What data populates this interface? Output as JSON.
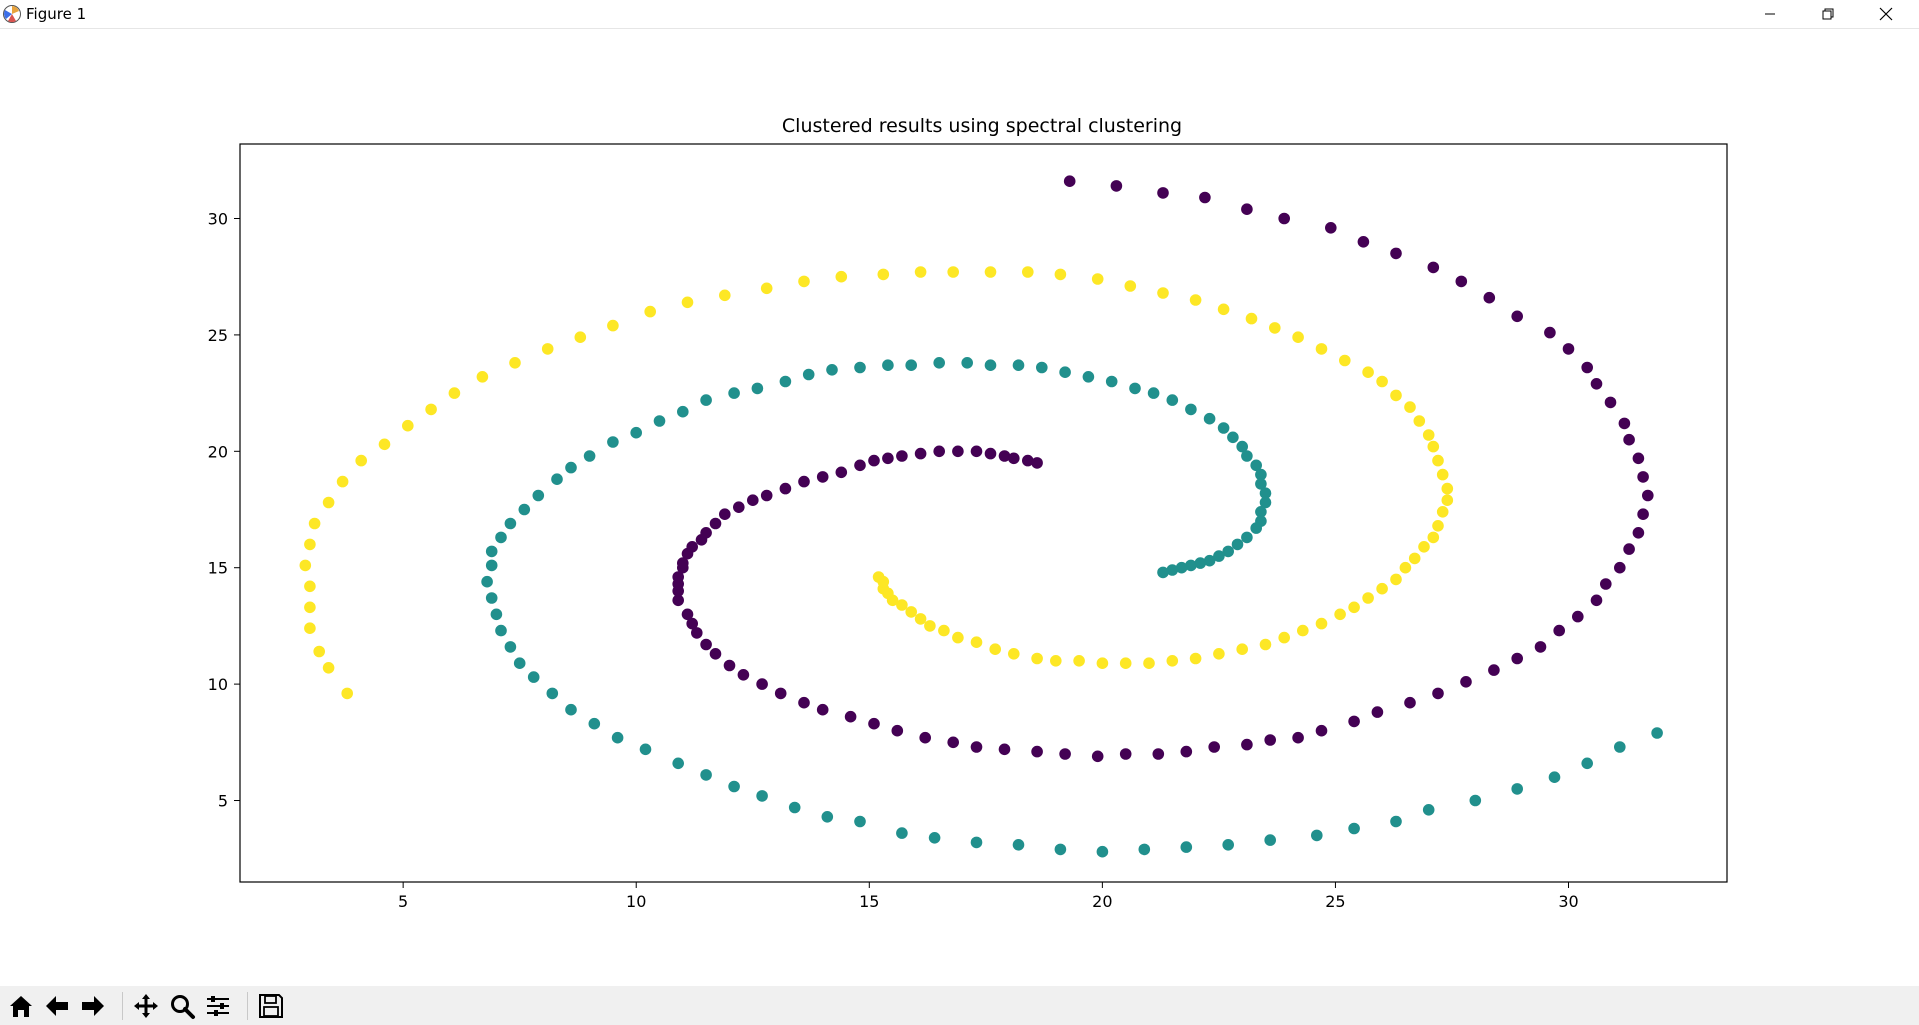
{
  "window": {
    "title": "Figure 1"
  },
  "toolbar": {
    "buttons": [
      "home-icon",
      "back-icon",
      "forward-icon",
      "pan-icon",
      "zoom-icon",
      "configure-icon",
      "save-icon"
    ]
  },
  "chart_data": {
    "type": "scatter",
    "title": "Clustered results using spectral clustering",
    "xlabel": "",
    "ylabel": "",
    "xlim": [
      1.5,
      33.4
    ],
    "ylim": [
      1.5,
      33.2
    ],
    "xticks": [
      5,
      10,
      15,
      20,
      25,
      30
    ],
    "yticks": [
      5,
      10,
      15,
      20,
      25,
      30
    ],
    "grid": false,
    "legend": "none",
    "series": [
      {
        "color": "#440154",
        "points": [
          [
            19.3,
            31.6
          ],
          [
            20.3,
            31.4
          ],
          [
            21.3,
            31.1
          ],
          [
            22.2,
            30.9
          ],
          [
            23.1,
            30.4
          ],
          [
            23.9,
            30.0
          ],
          [
            24.9,
            29.6
          ],
          [
            25.6,
            29.0
          ],
          [
            26.3,
            28.5
          ],
          [
            27.1,
            27.9
          ],
          [
            27.7,
            27.3
          ],
          [
            28.3,
            26.6
          ],
          [
            28.9,
            25.8
          ],
          [
            29.6,
            25.1
          ],
          [
            30.0,
            24.4
          ],
          [
            30.4,
            23.6
          ],
          [
            30.6,
            22.9
          ],
          [
            30.9,
            22.1
          ],
          [
            31.2,
            21.2
          ],
          [
            31.3,
            20.5
          ],
          [
            31.5,
            19.7
          ],
          [
            31.6,
            18.9
          ],
          [
            31.7,
            18.1
          ],
          [
            31.6,
            17.3
          ],
          [
            31.5,
            16.5
          ],
          [
            31.3,
            15.8
          ],
          [
            31.1,
            15.0
          ],
          [
            30.8,
            14.3
          ],
          [
            30.6,
            13.6
          ],
          [
            30.2,
            12.9
          ],
          [
            29.8,
            12.3
          ],
          [
            29.4,
            11.6
          ],
          [
            28.9,
            11.1
          ],
          [
            28.4,
            10.6
          ],
          [
            27.8,
            10.1
          ],
          [
            27.2,
            9.6
          ],
          [
            26.6,
            9.2
          ],
          [
            25.9,
            8.8
          ],
          [
            25.4,
            8.4
          ],
          [
            24.7,
            8.0
          ],
          [
            24.2,
            7.7
          ],
          [
            23.6,
            7.6
          ],
          [
            23.1,
            7.4
          ],
          [
            22.4,
            7.3
          ],
          [
            21.8,
            7.1
          ],
          [
            21.2,
            7.0
          ],
          [
            20.5,
            7.0
          ],
          [
            19.9,
            6.9
          ],
          [
            19.2,
            7.0
          ],
          [
            18.6,
            7.1
          ],
          [
            17.9,
            7.2
          ],
          [
            17.3,
            7.3
          ],
          [
            16.8,
            7.5
          ],
          [
            16.2,
            7.7
          ],
          [
            15.6,
            8.0
          ],
          [
            15.1,
            8.3
          ],
          [
            14.6,
            8.6
          ],
          [
            14.0,
            8.9
          ],
          [
            13.6,
            9.2
          ],
          [
            13.1,
            9.6
          ],
          [
            12.7,
            10.0
          ],
          [
            12.3,
            10.4
          ],
          [
            12.0,
            10.8
          ],
          [
            11.7,
            11.3
          ],
          [
            11.5,
            11.7
          ],
          [
            11.3,
            12.2
          ],
          [
            11.2,
            12.6
          ],
          [
            11.1,
            13.0
          ],
          [
            10.9,
            13.6
          ],
          [
            10.9,
            14.0
          ],
          [
            10.9,
            14.3
          ],
          [
            10.9,
            14.6
          ],
          [
            11.0,
            15.0
          ],
          [
            11.0,
            15.2
          ],
          [
            11.1,
            15.6
          ],
          [
            11.2,
            15.9
          ],
          [
            11.4,
            16.2
          ],
          [
            11.5,
            16.5
          ],
          [
            11.7,
            16.9
          ],
          [
            11.9,
            17.3
          ],
          [
            12.2,
            17.6
          ],
          [
            12.5,
            17.9
          ],
          [
            12.8,
            18.1
          ],
          [
            13.2,
            18.4
          ],
          [
            13.6,
            18.7
          ],
          [
            14.0,
            18.9
          ],
          [
            14.4,
            19.1
          ],
          [
            14.8,
            19.4
          ],
          [
            15.1,
            19.6
          ],
          [
            15.4,
            19.7
          ],
          [
            15.7,
            19.8
          ],
          [
            16.1,
            19.9
          ],
          [
            16.5,
            20.0
          ],
          [
            16.9,
            20.0
          ],
          [
            17.3,
            20.0
          ],
          [
            17.6,
            19.9
          ],
          [
            17.9,
            19.8
          ],
          [
            18.1,
            19.7
          ],
          [
            18.4,
            19.6
          ],
          [
            18.6,
            19.5
          ]
        ]
      },
      {
        "color": "#21908d",
        "points": [
          [
            31.9,
            7.9
          ],
          [
            31.1,
            7.3
          ],
          [
            30.4,
            6.6
          ],
          [
            29.7,
            6.0
          ],
          [
            28.9,
            5.5
          ],
          [
            28.0,
            5.0
          ],
          [
            27.0,
            4.6
          ],
          [
            26.3,
            4.1
          ],
          [
            25.4,
            3.8
          ],
          [
            24.6,
            3.5
          ],
          [
            23.6,
            3.3
          ],
          [
            22.7,
            3.1
          ],
          [
            21.8,
            3.0
          ],
          [
            20.9,
            2.9
          ],
          [
            20.0,
            2.8
          ],
          [
            19.1,
            2.9
          ],
          [
            18.2,
            3.1
          ],
          [
            17.3,
            3.2
          ],
          [
            16.4,
            3.4
          ],
          [
            15.7,
            3.6
          ],
          [
            14.8,
            4.1
          ],
          [
            14.1,
            4.3
          ],
          [
            13.4,
            4.7
          ],
          [
            12.7,
            5.2
          ],
          [
            12.1,
            5.6
          ],
          [
            11.5,
            6.1
          ],
          [
            10.9,
            6.6
          ],
          [
            10.2,
            7.2
          ],
          [
            9.6,
            7.7
          ],
          [
            9.1,
            8.3
          ],
          [
            8.6,
            8.9
          ],
          [
            8.2,
            9.6
          ],
          [
            7.8,
            10.3
          ],
          [
            7.5,
            10.9
          ],
          [
            7.3,
            11.6
          ],
          [
            7.1,
            12.3
          ],
          [
            7.0,
            13.0
          ],
          [
            6.9,
            13.7
          ],
          [
            6.8,
            14.4
          ],
          [
            6.9,
            15.1
          ],
          [
            6.9,
            15.7
          ],
          [
            7.1,
            16.3
          ],
          [
            7.3,
            16.9
          ],
          [
            7.6,
            17.5
          ],
          [
            7.9,
            18.1
          ],
          [
            8.3,
            18.8
          ],
          [
            8.6,
            19.3
          ],
          [
            9.0,
            19.8
          ],
          [
            9.5,
            20.4
          ],
          [
            10.0,
            20.8
          ],
          [
            10.5,
            21.3
          ],
          [
            11.0,
            21.7
          ],
          [
            11.5,
            22.2
          ],
          [
            12.1,
            22.5
          ],
          [
            12.6,
            22.7
          ],
          [
            13.2,
            23.0
          ],
          [
            13.7,
            23.3
          ],
          [
            14.2,
            23.5
          ],
          [
            14.8,
            23.6
          ],
          [
            15.4,
            23.7
          ],
          [
            15.9,
            23.7
          ],
          [
            16.5,
            23.8
          ],
          [
            17.1,
            23.8
          ],
          [
            17.6,
            23.7
          ],
          [
            18.2,
            23.7
          ],
          [
            18.7,
            23.6
          ],
          [
            19.2,
            23.4
          ],
          [
            19.7,
            23.2
          ],
          [
            20.2,
            23.0
          ],
          [
            20.7,
            22.7
          ],
          [
            21.1,
            22.5
          ],
          [
            21.5,
            22.2
          ],
          [
            21.9,
            21.8
          ],
          [
            22.3,
            21.4
          ],
          [
            22.6,
            21.0
          ],
          [
            22.8,
            20.6
          ],
          [
            23.0,
            20.2
          ],
          [
            23.1,
            19.8
          ],
          [
            23.3,
            19.4
          ],
          [
            23.4,
            19.0
          ],
          [
            23.4,
            18.6
          ],
          [
            23.5,
            18.2
          ],
          [
            23.5,
            17.8
          ],
          [
            23.4,
            17.4
          ],
          [
            23.4,
            17.0
          ],
          [
            23.3,
            16.7
          ],
          [
            23.1,
            16.3
          ],
          [
            22.9,
            16.0
          ],
          [
            22.7,
            15.7
          ],
          [
            22.5,
            15.5
          ],
          [
            22.3,
            15.3
          ],
          [
            22.1,
            15.2
          ],
          [
            21.9,
            15.1
          ],
          [
            21.7,
            15.0
          ],
          [
            21.5,
            14.9
          ],
          [
            21.3,
            14.8
          ]
        ]
      },
      {
        "color": "#fde725",
        "points": [
          [
            3.8,
            9.6
          ],
          [
            3.4,
            10.7
          ],
          [
            3.2,
            11.4
          ],
          [
            3.0,
            12.4
          ],
          [
            3.0,
            13.3
          ],
          [
            3.0,
            14.2
          ],
          [
            2.9,
            15.1
          ],
          [
            3.0,
            16.0
          ],
          [
            3.1,
            16.9
          ],
          [
            3.4,
            17.8
          ],
          [
            3.7,
            18.7
          ],
          [
            4.1,
            19.6
          ],
          [
            4.6,
            20.3
          ],
          [
            5.1,
            21.1
          ],
          [
            5.6,
            21.8
          ],
          [
            6.1,
            22.5
          ],
          [
            6.7,
            23.2
          ],
          [
            7.4,
            23.8
          ],
          [
            8.1,
            24.4
          ],
          [
            8.8,
            24.9
          ],
          [
            9.5,
            25.4
          ],
          [
            10.3,
            26.0
          ],
          [
            11.1,
            26.4
          ],
          [
            11.9,
            26.7
          ],
          [
            12.8,
            27.0
          ],
          [
            13.6,
            27.3
          ],
          [
            14.4,
            27.5
          ],
          [
            15.3,
            27.6
          ],
          [
            16.1,
            27.7
          ],
          [
            16.8,
            27.7
          ],
          [
            17.6,
            27.7
          ],
          [
            18.4,
            27.7
          ],
          [
            19.1,
            27.6
          ],
          [
            19.9,
            27.4
          ],
          [
            20.6,
            27.1
          ],
          [
            21.3,
            26.8
          ],
          [
            22.0,
            26.5
          ],
          [
            22.6,
            26.1
          ],
          [
            23.2,
            25.7
          ],
          [
            23.7,
            25.3
          ],
          [
            24.2,
            24.9
          ],
          [
            24.7,
            24.4
          ],
          [
            25.2,
            23.9
          ],
          [
            25.7,
            23.4
          ],
          [
            26.0,
            23.0
          ],
          [
            26.3,
            22.4
          ],
          [
            26.6,
            21.9
          ],
          [
            26.8,
            21.3
          ],
          [
            27.0,
            20.7
          ],
          [
            27.1,
            20.2
          ],
          [
            27.2,
            19.6
          ],
          [
            27.3,
            19.0
          ],
          [
            27.4,
            18.4
          ],
          [
            27.4,
            17.9
          ],
          [
            27.3,
            17.4
          ],
          [
            27.2,
            16.8
          ],
          [
            27.1,
            16.3
          ],
          [
            26.9,
            15.9
          ],
          [
            26.7,
            15.4
          ],
          [
            26.5,
            15.0
          ],
          [
            26.3,
            14.5
          ],
          [
            26.0,
            14.1
          ],
          [
            25.7,
            13.7
          ],
          [
            25.4,
            13.3
          ],
          [
            25.1,
            13.0
          ],
          [
            24.7,
            12.6
          ],
          [
            24.3,
            12.3
          ],
          [
            23.9,
            12.0
          ],
          [
            23.5,
            11.7
          ],
          [
            23.0,
            11.5
          ],
          [
            22.5,
            11.3
          ],
          [
            22.0,
            11.1
          ],
          [
            21.5,
            11.0
          ],
          [
            21.0,
            10.9
          ],
          [
            20.5,
            10.9
          ],
          [
            20.0,
            10.9
          ],
          [
            19.5,
            11.0
          ],
          [
            19.0,
            11.0
          ],
          [
            18.6,
            11.1
          ],
          [
            18.1,
            11.3
          ],
          [
            17.7,
            11.5
          ],
          [
            17.3,
            11.8
          ],
          [
            16.9,
            12.0
          ],
          [
            16.6,
            12.3
          ],
          [
            16.3,
            12.5
          ],
          [
            16.1,
            12.8
          ],
          [
            15.9,
            13.1
          ],
          [
            15.7,
            13.4
          ],
          [
            15.5,
            13.6
          ],
          [
            15.4,
            13.9
          ],
          [
            15.3,
            14.1
          ],
          [
            15.3,
            14.4
          ],
          [
            15.2,
            14.6
          ]
        ]
      }
    ]
  }
}
